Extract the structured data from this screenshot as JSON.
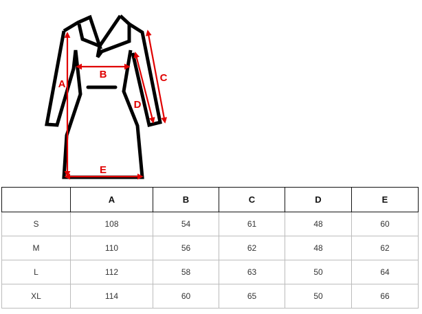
{
  "diagram": {
    "labels": [
      "A",
      "B",
      "C",
      "D",
      "E"
    ],
    "outline_color": "#000000",
    "measure_color": "#e00000"
  },
  "table": {
    "headers": [
      "",
      "A",
      "B",
      "C",
      "D",
      "E"
    ],
    "rows": [
      [
        "S",
        "108",
        "54",
        "61",
        "48",
        "60"
      ],
      [
        "M",
        "110",
        "56",
        "62",
        "48",
        "62"
      ],
      [
        "L",
        "112",
        "58",
        "63",
        "50",
        "64"
      ],
      [
        "XL",
        "114",
        "60",
        "65",
        "50",
        "66"
      ]
    ]
  }
}
